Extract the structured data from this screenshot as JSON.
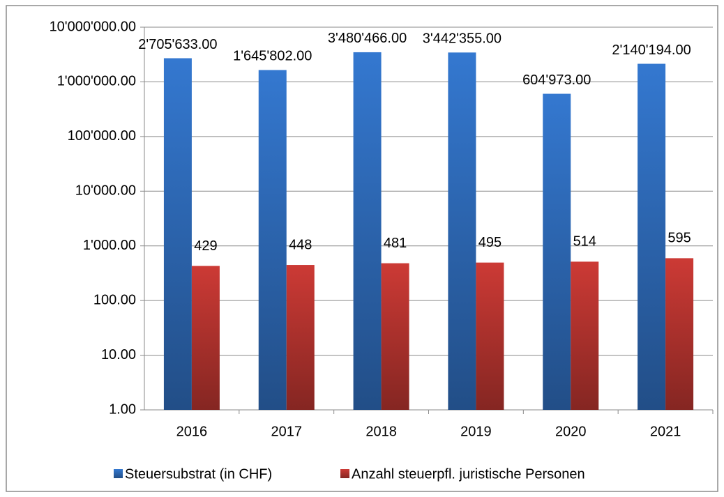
{
  "chart_data": {
    "type": "bar",
    "categories": [
      "2016",
      "2017",
      "2018",
      "2019",
      "2020",
      "2021"
    ],
    "series": [
      {
        "name": "Steuersubstrat (in CHF)",
        "color": "#3478d0",
        "values": [
          2705633,
          1645802,
          3480466,
          3442355,
          604973,
          2140194
        ],
        "value_labels": [
          "2'705'633.00",
          "1'645'802.00",
          "3'480'466.00",
          "3'442'355.00",
          "604'973.00",
          "2'140'194.00"
        ]
      },
      {
        "name": "Anzahl steuerpfl. juristische Personen",
        "color": "#cc3a35",
        "values": [
          429,
          448,
          481,
          495,
          514,
          595
        ]
      }
    ],
    "log_scale": true,
    "ylim": [
      1,
      10000000
    ],
    "yticks": [
      {
        "value": 1,
        "label": "1.00"
      },
      {
        "value": 10,
        "label": "10.00"
      },
      {
        "value": 100,
        "label": "100.00"
      },
      {
        "value": 1000,
        "label": "1'000.00"
      },
      {
        "value": 10000,
        "label": "10'000.00"
      },
      {
        "value": 100000,
        "label": "100'000.00"
      },
      {
        "value": 1000000,
        "label": "1'000'000.00"
      },
      {
        "value": 10000000,
        "label": "10'000'000.00"
      }
    ],
    "grid": true,
    "legend": "bottom"
  }
}
